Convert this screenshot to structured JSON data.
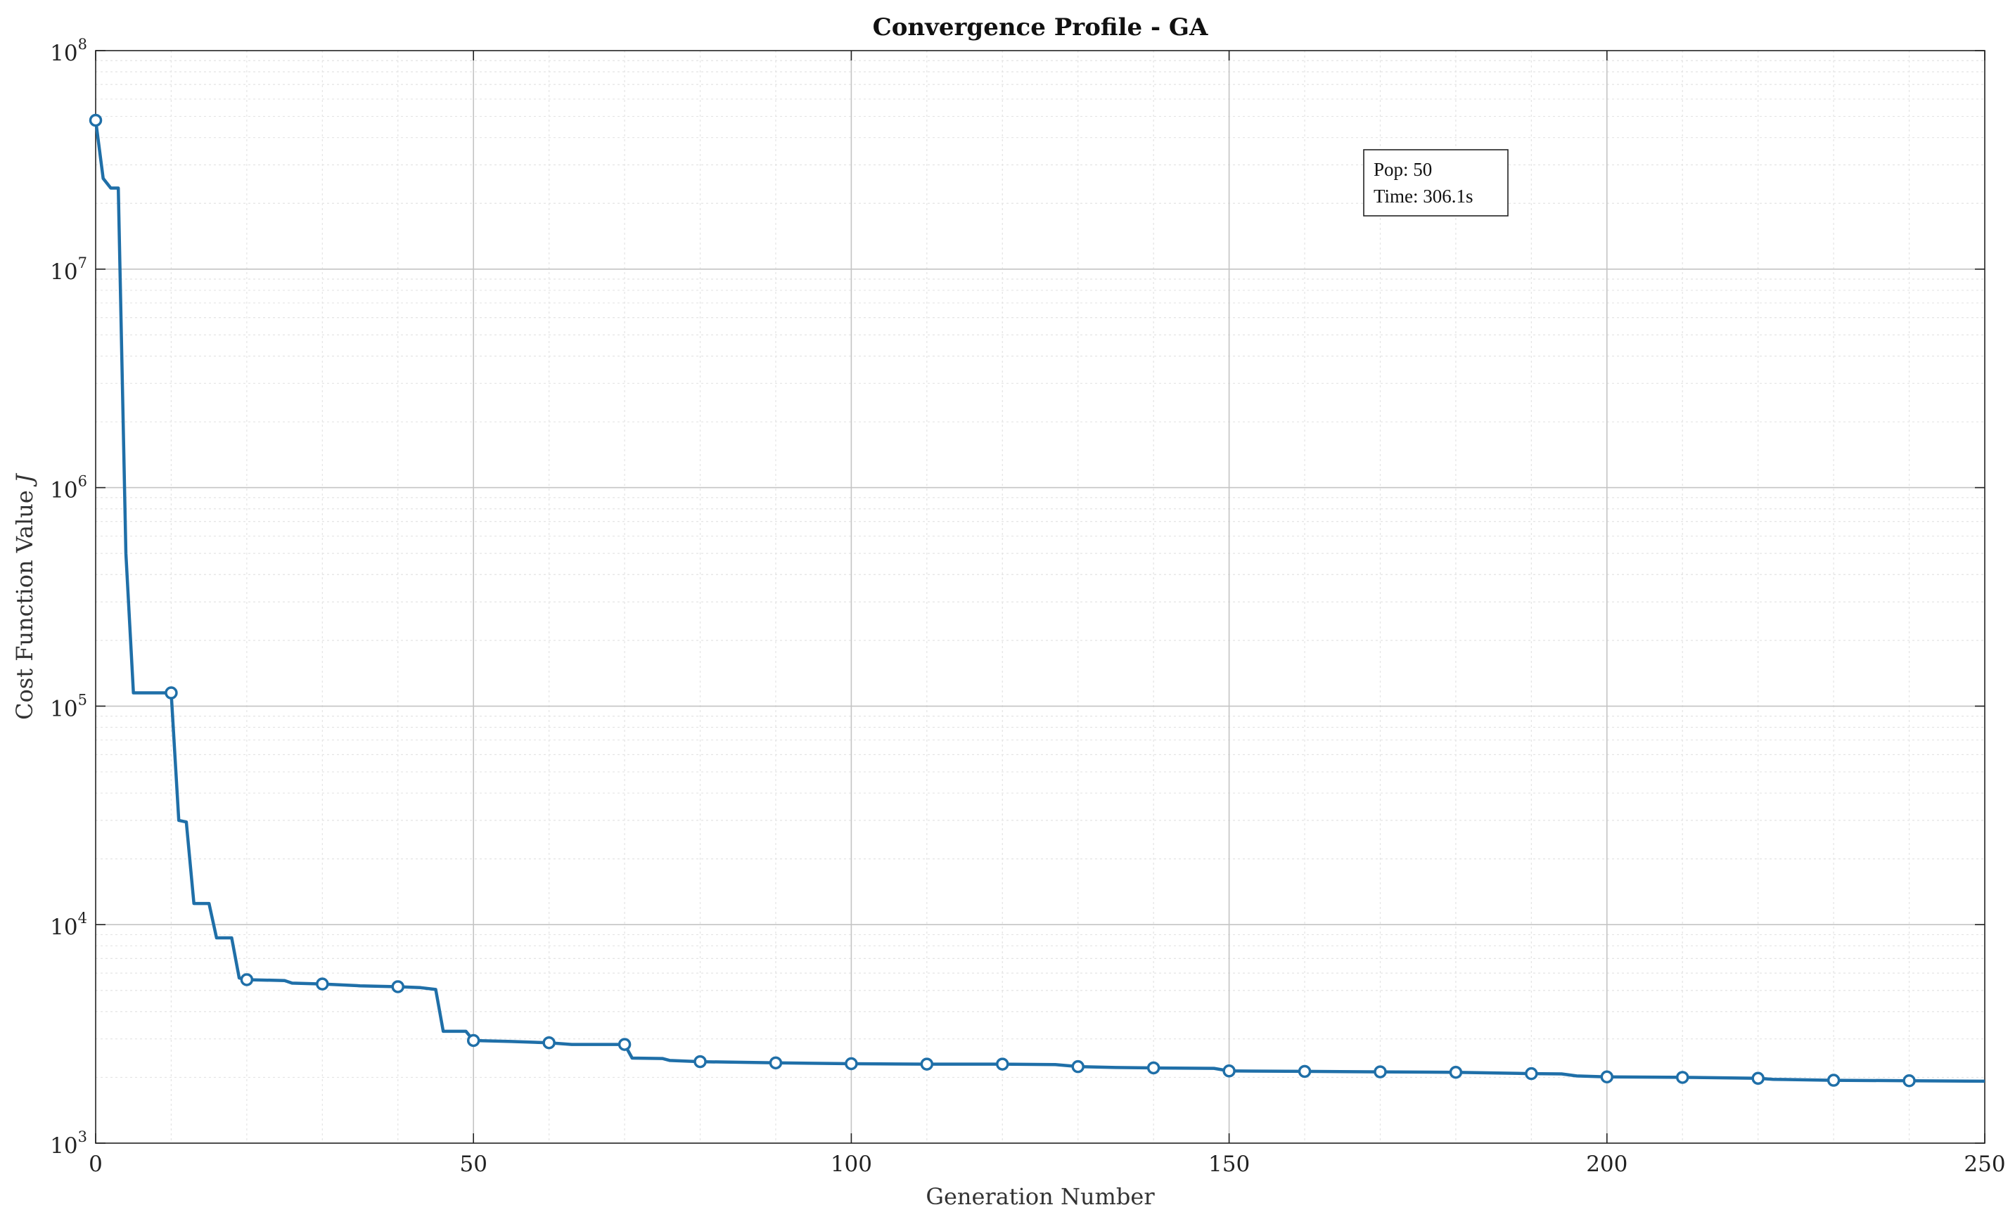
{
  "chart_data": {
    "type": "line",
    "title": "Convergence Profile - GA",
    "xlabel": "Generation Number",
    "ylabel_main": "Cost Function Value ",
    "ylabel_var": "J",
    "xlim": [
      0,
      250
    ],
    "ylim": [
      1000,
      100000000
    ],
    "yscale": "log",
    "grid": true,
    "minor_grid": true,
    "x_ticks": [
      0,
      50,
      100,
      150,
      200,
      250
    ],
    "y_ticks": [
      {
        "value": 1000,
        "base": "10",
        "exp": "3"
      },
      {
        "value": 10000,
        "base": "10",
        "exp": "4"
      },
      {
        "value": 100000,
        "base": "10",
        "exp": "5"
      },
      {
        "value": 1000000,
        "base": "10",
        "exp": "6"
      },
      {
        "value": 10000000,
        "base": "10",
        "exp": "7"
      },
      {
        "value": 100000000,
        "base": "10",
        "exp": "8"
      }
    ],
    "line_color": "#1f6fa8",
    "annotation": {
      "line1": "Pop: 50",
      "line2": "Time: 306.1s",
      "placement": "top-right"
    },
    "series": [
      {
        "points": [
          [
            0,
            48000000
          ],
          [
            1,
            26000000
          ],
          [
            2,
            23500000
          ],
          [
            3,
            23500000
          ],
          [
            4,
            500000
          ],
          [
            5,
            115000
          ],
          [
            6,
            115000
          ],
          [
            7,
            115000
          ],
          [
            8,
            115000
          ],
          [
            9,
            115000
          ],
          [
            10,
            115000
          ],
          [
            11,
            30000
          ],
          [
            12,
            29500
          ],
          [
            13,
            12500
          ],
          [
            14,
            12500
          ],
          [
            15,
            12500
          ],
          [
            16,
            8700
          ],
          [
            17,
            8700
          ],
          [
            18,
            8700
          ],
          [
            19,
            5700
          ],
          [
            20,
            5600
          ],
          [
            25,
            5550
          ],
          [
            26,
            5400
          ],
          [
            30,
            5350
          ],
          [
            35,
            5250
          ],
          [
            40,
            5200
          ],
          [
            43,
            5150
          ],
          [
            45,
            5050
          ],
          [
            46,
            3250
          ],
          [
            49,
            3250
          ],
          [
            50,
            2950
          ],
          [
            55,
            2920
          ],
          [
            60,
            2880
          ],
          [
            63,
            2830
          ],
          [
            70,
            2830
          ],
          [
            71,
            2450
          ],
          [
            75,
            2440
          ],
          [
            76,
            2390
          ],
          [
            80,
            2360
          ],
          [
            90,
            2330
          ],
          [
            100,
            2310
          ],
          [
            110,
            2300
          ],
          [
            120,
            2300
          ],
          [
            127,
            2290
          ],
          [
            130,
            2240
          ],
          [
            135,
            2220
          ],
          [
            140,
            2210
          ],
          [
            148,
            2200
          ],
          [
            150,
            2140
          ],
          [
            160,
            2130
          ],
          [
            170,
            2120
          ],
          [
            180,
            2110
          ],
          [
            190,
            2080
          ],
          [
            194,
            2075
          ],
          [
            196,
            2030
          ],
          [
            200,
            2010
          ],
          [
            210,
            2000
          ],
          [
            220,
            1980
          ],
          [
            222,
            1960
          ],
          [
            230,
            1940
          ],
          [
            240,
            1930
          ],
          [
            250,
            1920
          ]
        ],
        "markers": [
          [
            0,
            48000000
          ],
          [
            10,
            115000
          ],
          [
            20,
            5600
          ],
          [
            30,
            5350
          ],
          [
            40,
            5200
          ],
          [
            50,
            2950
          ],
          [
            60,
            2880
          ],
          [
            70,
            2830
          ],
          [
            80,
            2360
          ],
          [
            90,
            2330
          ],
          [
            100,
            2310
          ],
          [
            110,
            2300
          ],
          [
            120,
            2300
          ],
          [
            130,
            2240
          ],
          [
            140,
            2210
          ],
          [
            150,
            2140
          ],
          [
            160,
            2130
          ],
          [
            170,
            2120
          ],
          [
            180,
            2110
          ],
          [
            190,
            2080
          ],
          [
            200,
            2010
          ],
          [
            210,
            2000
          ],
          [
            220,
            1980
          ],
          [
            230,
            1940
          ],
          [
            240,
            1930
          ]
        ]
      }
    ]
  }
}
